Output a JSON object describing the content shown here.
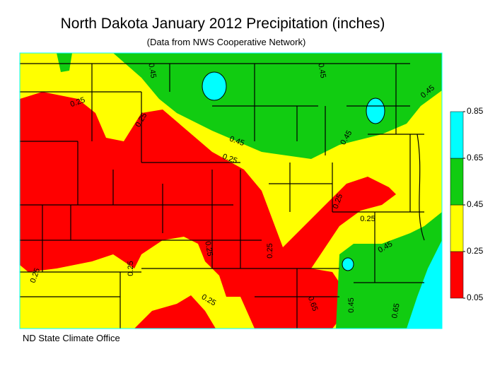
{
  "title": "North Dakota January 2012 Precipitation (inches)",
  "subtitle": "(Data from NWS Cooperative Network)",
  "credit": "ND State Climate Office",
  "legend": {
    "ticks": [
      0.05,
      0.25,
      0.45,
      0.65,
      0.85
    ],
    "colors": [
      "#ff0000",
      "#ffff00",
      "#11cc11",
      "#00ffff"
    ]
  },
  "contour_labels": [
    "0.45",
    "0.45",
    "0.45",
    "0.25",
    "0.25",
    "0.45",
    "0.25",
    "0.45",
    "0.25",
    "0.25",
    "0.45",
    "0.25",
    "0.25",
    "0.25",
    "0.25",
    "0.25",
    "0.65",
    "0.45",
    "0.65"
  ]
}
